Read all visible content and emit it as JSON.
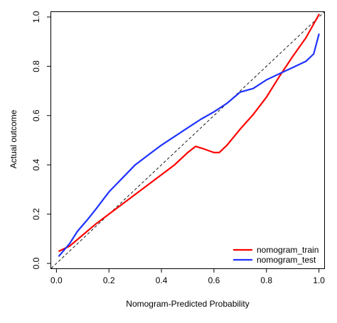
{
  "chart_data": {
    "type": "line",
    "title": "",
    "xlabel": "Nomogram-Predicted Probability",
    "ylabel": "Actual outcome",
    "xlim": [
      -0.02,
      1.02
    ],
    "ylim": [
      -0.02,
      1.02
    ],
    "x_ticks": [
      0.0,
      0.2,
      0.4,
      0.6,
      0.8,
      1.0
    ],
    "y_ticks": [
      0.0,
      0.2,
      0.4,
      0.6,
      0.8,
      1.0
    ],
    "x_tick_labels": [
      "0.0",
      "0.2",
      "0.4",
      "0.6",
      "0.8",
      "1.0"
    ],
    "y_tick_labels": [
      "0.0",
      "0.2",
      "0.4",
      "0.6",
      "0.8",
      "1.0"
    ],
    "grid": false,
    "legend_position": "bottom-right",
    "reference_line": {
      "style": "dashed",
      "color": "#000000",
      "x": [
        -0.02,
        1.02
      ],
      "y": [
        -0.02,
        1.02
      ]
    },
    "series": [
      {
        "name": "nomogram_train",
        "color": "#ff0000",
        "x": [
          0.01,
          0.05,
          0.1,
          0.15,
          0.2,
          0.25,
          0.3,
          0.35,
          0.4,
          0.45,
          0.5,
          0.53,
          0.56,
          0.6,
          0.62,
          0.65,
          0.7,
          0.75,
          0.8,
          0.85,
          0.9,
          0.95,
          1.0
        ],
        "y": [
          0.05,
          0.07,
          0.115,
          0.16,
          0.2,
          0.24,
          0.28,
          0.32,
          0.36,
          0.4,
          0.45,
          0.475,
          0.465,
          0.45,
          0.45,
          0.48,
          0.545,
          0.605,
          0.675,
          0.76,
          0.84,
          0.915,
          1.01
        ]
      },
      {
        "name": "nomogram_test",
        "color": "#1e32ff",
        "x": [
          0.01,
          0.05,
          0.08,
          0.12,
          0.15,
          0.2,
          0.25,
          0.3,
          0.35,
          0.4,
          0.45,
          0.5,
          0.55,
          0.6,
          0.65,
          0.7,
          0.75,
          0.8,
          0.85,
          0.9,
          0.95,
          0.98,
          1.0
        ],
        "y": [
          0.03,
          0.08,
          0.13,
          0.18,
          0.22,
          0.29,
          0.345,
          0.4,
          0.44,
          0.48,
          0.515,
          0.55,
          0.585,
          0.615,
          0.65,
          0.695,
          0.71,
          0.745,
          0.77,
          0.795,
          0.82,
          0.85,
          0.93
        ]
      }
    ]
  }
}
